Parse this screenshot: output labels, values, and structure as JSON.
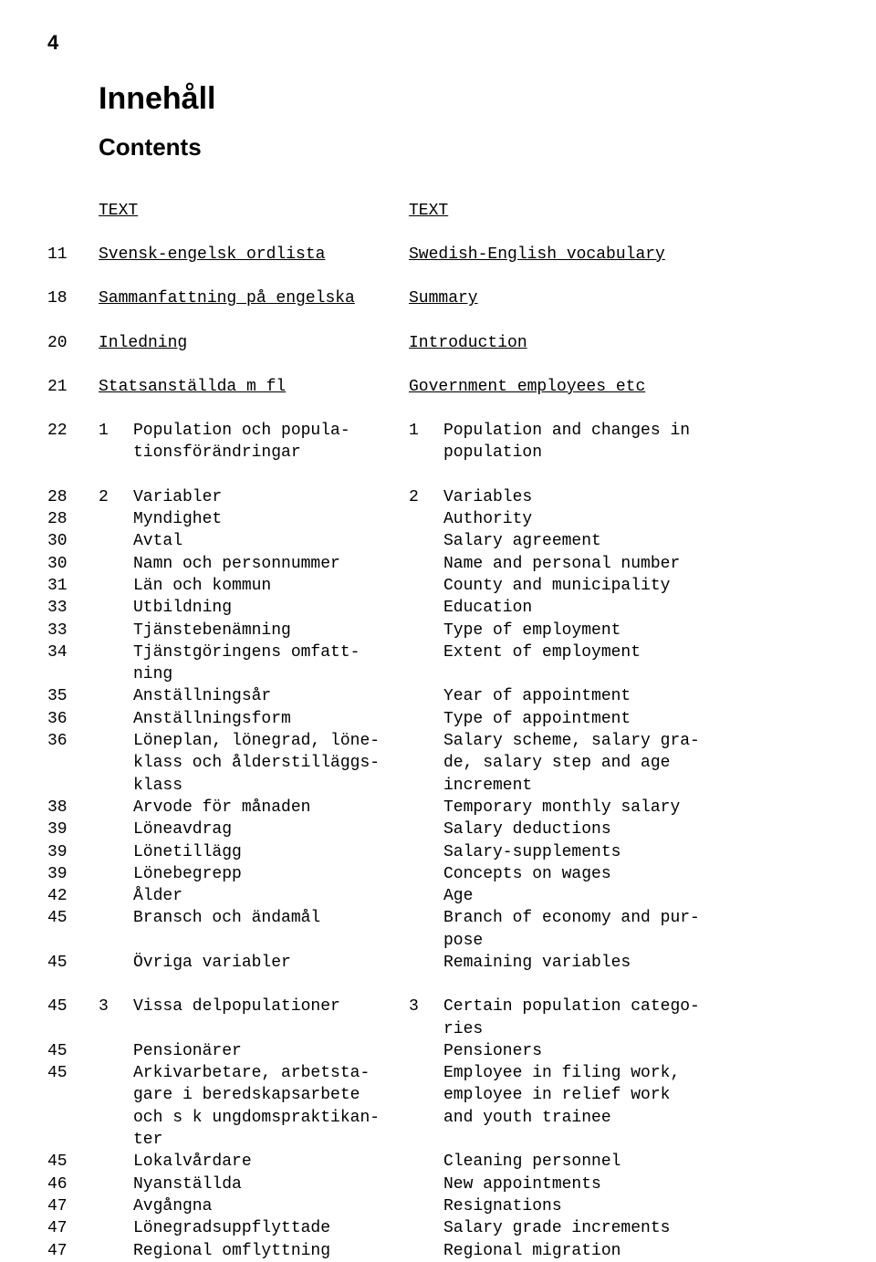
{
  "page_number": "4",
  "heading_sv": "Innehåll",
  "heading_en": "Contents",
  "header": {
    "left": "TEXT",
    "right": "TEXT"
  },
  "section_rows": [
    {
      "page": "11",
      "left": "Svensk-engelsk ordlista",
      "right": "Swedish-English vocabulary"
    },
    {
      "page": "18",
      "left": "Sammanfattning på engelska",
      "right": "Summary"
    },
    {
      "page": "20",
      "left": "Inledning",
      "right": "Introduction"
    },
    {
      "page": "21",
      "left": "Statsanställda m fl",
      "right": "Government employees etc"
    }
  ],
  "group1": {
    "page": "22",
    "num": "1",
    "left": [
      "Population och popula-",
      "tionsförändringar"
    ],
    "right": [
      "Population and changes in",
      "population"
    ]
  },
  "block2_header": {
    "page": "28",
    "num": "2",
    "left": "Variabler",
    "right_num": "2",
    "right": "Variables"
  },
  "block2_items": [
    {
      "page": "28",
      "left": [
        "Myndighet"
      ],
      "right": [
        "Authority"
      ]
    },
    {
      "page": "30",
      "left": [
        "Avtal"
      ],
      "right": [
        "Salary agreement"
      ]
    },
    {
      "page": "30",
      "left": [
        "Namn och personnummer"
      ],
      "right": [
        "Name and personal number"
      ]
    },
    {
      "page": "31",
      "left": [
        "Län och kommun"
      ],
      "right": [
        "County and municipality"
      ]
    },
    {
      "page": "33",
      "left": [
        "Utbildning"
      ],
      "right": [
        "Education"
      ]
    },
    {
      "page": "33",
      "left": [
        "Tjänstebenämning"
      ],
      "right": [
        "Type of employment"
      ]
    },
    {
      "page": "34",
      "left": [
        "Tjänstgöringens omfatt-",
        "ning"
      ],
      "right": [
        "Extent of employment",
        ""
      ]
    },
    {
      "page": "35",
      "left": [
        "Anställningsår"
      ],
      "right": [
        "Year of appointment"
      ]
    },
    {
      "page": "36",
      "left": [
        "Anställningsform"
      ],
      "right": [
        "Type of appointment"
      ]
    },
    {
      "page": "36",
      "left": [
        "Löneplan, lönegrad, löne-",
        "klass och ålderstilläggs-",
        "klass"
      ],
      "right": [
        "Salary scheme, salary gra-",
        "de, salary step and age",
        "increment"
      ]
    },
    {
      "page": "38",
      "left": [
        "Arvode för månaden"
      ],
      "right": [
        "Temporary monthly salary"
      ]
    },
    {
      "page": "39",
      "left": [
        "Löneavdrag"
      ],
      "right": [
        "Salary deductions"
      ]
    },
    {
      "page": "39",
      "left": [
        "Lönetillägg"
      ],
      "right": [
        "Salary-supplements"
      ]
    },
    {
      "page": "39",
      "left": [
        "Lönebegrepp"
      ],
      "right": [
        "Concepts on wages"
      ]
    },
    {
      "page": "42",
      "left": [
        "Ålder"
      ],
      "right": [
        "Age"
      ]
    },
    {
      "page": "45",
      "left": [
        "Bransch och ändamål",
        ""
      ],
      "right": [
        "Branch of economy and pur-",
        "pose"
      ]
    },
    {
      "page": "45",
      "left": [
        "Övriga variabler"
      ],
      "right": [
        "Remaining variables"
      ]
    }
  ],
  "block3_header": {
    "page": "45",
    "num": "3",
    "left": [
      "Vissa delpopulationer",
      ""
    ],
    "right_num": "3",
    "right": [
      "Certain population catego-",
      "ries"
    ]
  },
  "block3_items": [
    {
      "page": "45",
      "left": [
        "Pensionärer"
      ],
      "right": [
        "Pensioners"
      ]
    },
    {
      "page": "45",
      "left": [
        "Arkivarbetare, arbetsta-",
        "gare i beredskapsarbete",
        "och s k ungdomspraktikan-",
        "ter"
      ],
      "right": [
        "Employee in filing work,",
        "employee in relief work",
        "and youth trainee",
        ""
      ]
    },
    {
      "page": "45",
      "left": [
        "Lokalvårdare"
      ],
      "right": [
        "Cleaning personnel"
      ]
    },
    {
      "page": "46",
      "left": [
        "Nyanställda"
      ],
      "right": [
        "New appointments"
      ]
    },
    {
      "page": "47",
      "left": [
        "Avgångna"
      ],
      "right": [
        "Resignations"
      ]
    },
    {
      "page": "47",
      "left": [
        "Lönegradsuppflyttade"
      ],
      "right": [
        "Salary grade increments"
      ]
    },
    {
      "page": "47",
      "left": [
        "Regional omflyttning"
      ],
      "right": [
        "Regional migration"
      ]
    }
  ],
  "style": {
    "font_family": "Courier New",
    "font_size_body": 18,
    "font_size_h1": 34,
    "font_size_h2": 26,
    "background": "#ffffff",
    "text_color": "#000000"
  }
}
